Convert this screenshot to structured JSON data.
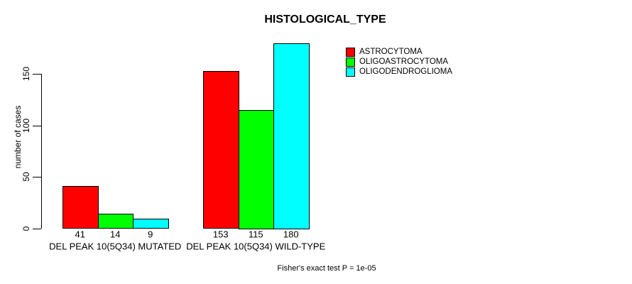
{
  "chart_data": {
    "type": "bar",
    "title": "HISTOLOGICAL_TYPE",
    "ylabel": "number of cases",
    "xlabel": "",
    "categories": [
      "DEL PEAK 10(5Q34) MUTATED",
      "DEL PEAK 10(5Q34) WILD-TYPE"
    ],
    "series": [
      {
        "name": "ASTROCYTOMA",
        "color": "#ff0000",
        "values": [
          41,
          153
        ]
      },
      {
        "name": "OLIGOASTROCYTOMA",
        "color": "#00ff00",
        "values": [
          14,
          115
        ]
      },
      {
        "name": "OLIGODENDROGLIOMA",
        "color": "#00ffff",
        "values": [
          9,
          180
        ]
      }
    ],
    "yticks": [
      0,
      50,
      100,
      150
    ],
    "ylim": [
      0,
      186
    ],
    "grid": false,
    "legend_position": "top-right",
    "bar_value_labels": true,
    "annotation": "Fisher's exact test P = 1e-05"
  }
}
